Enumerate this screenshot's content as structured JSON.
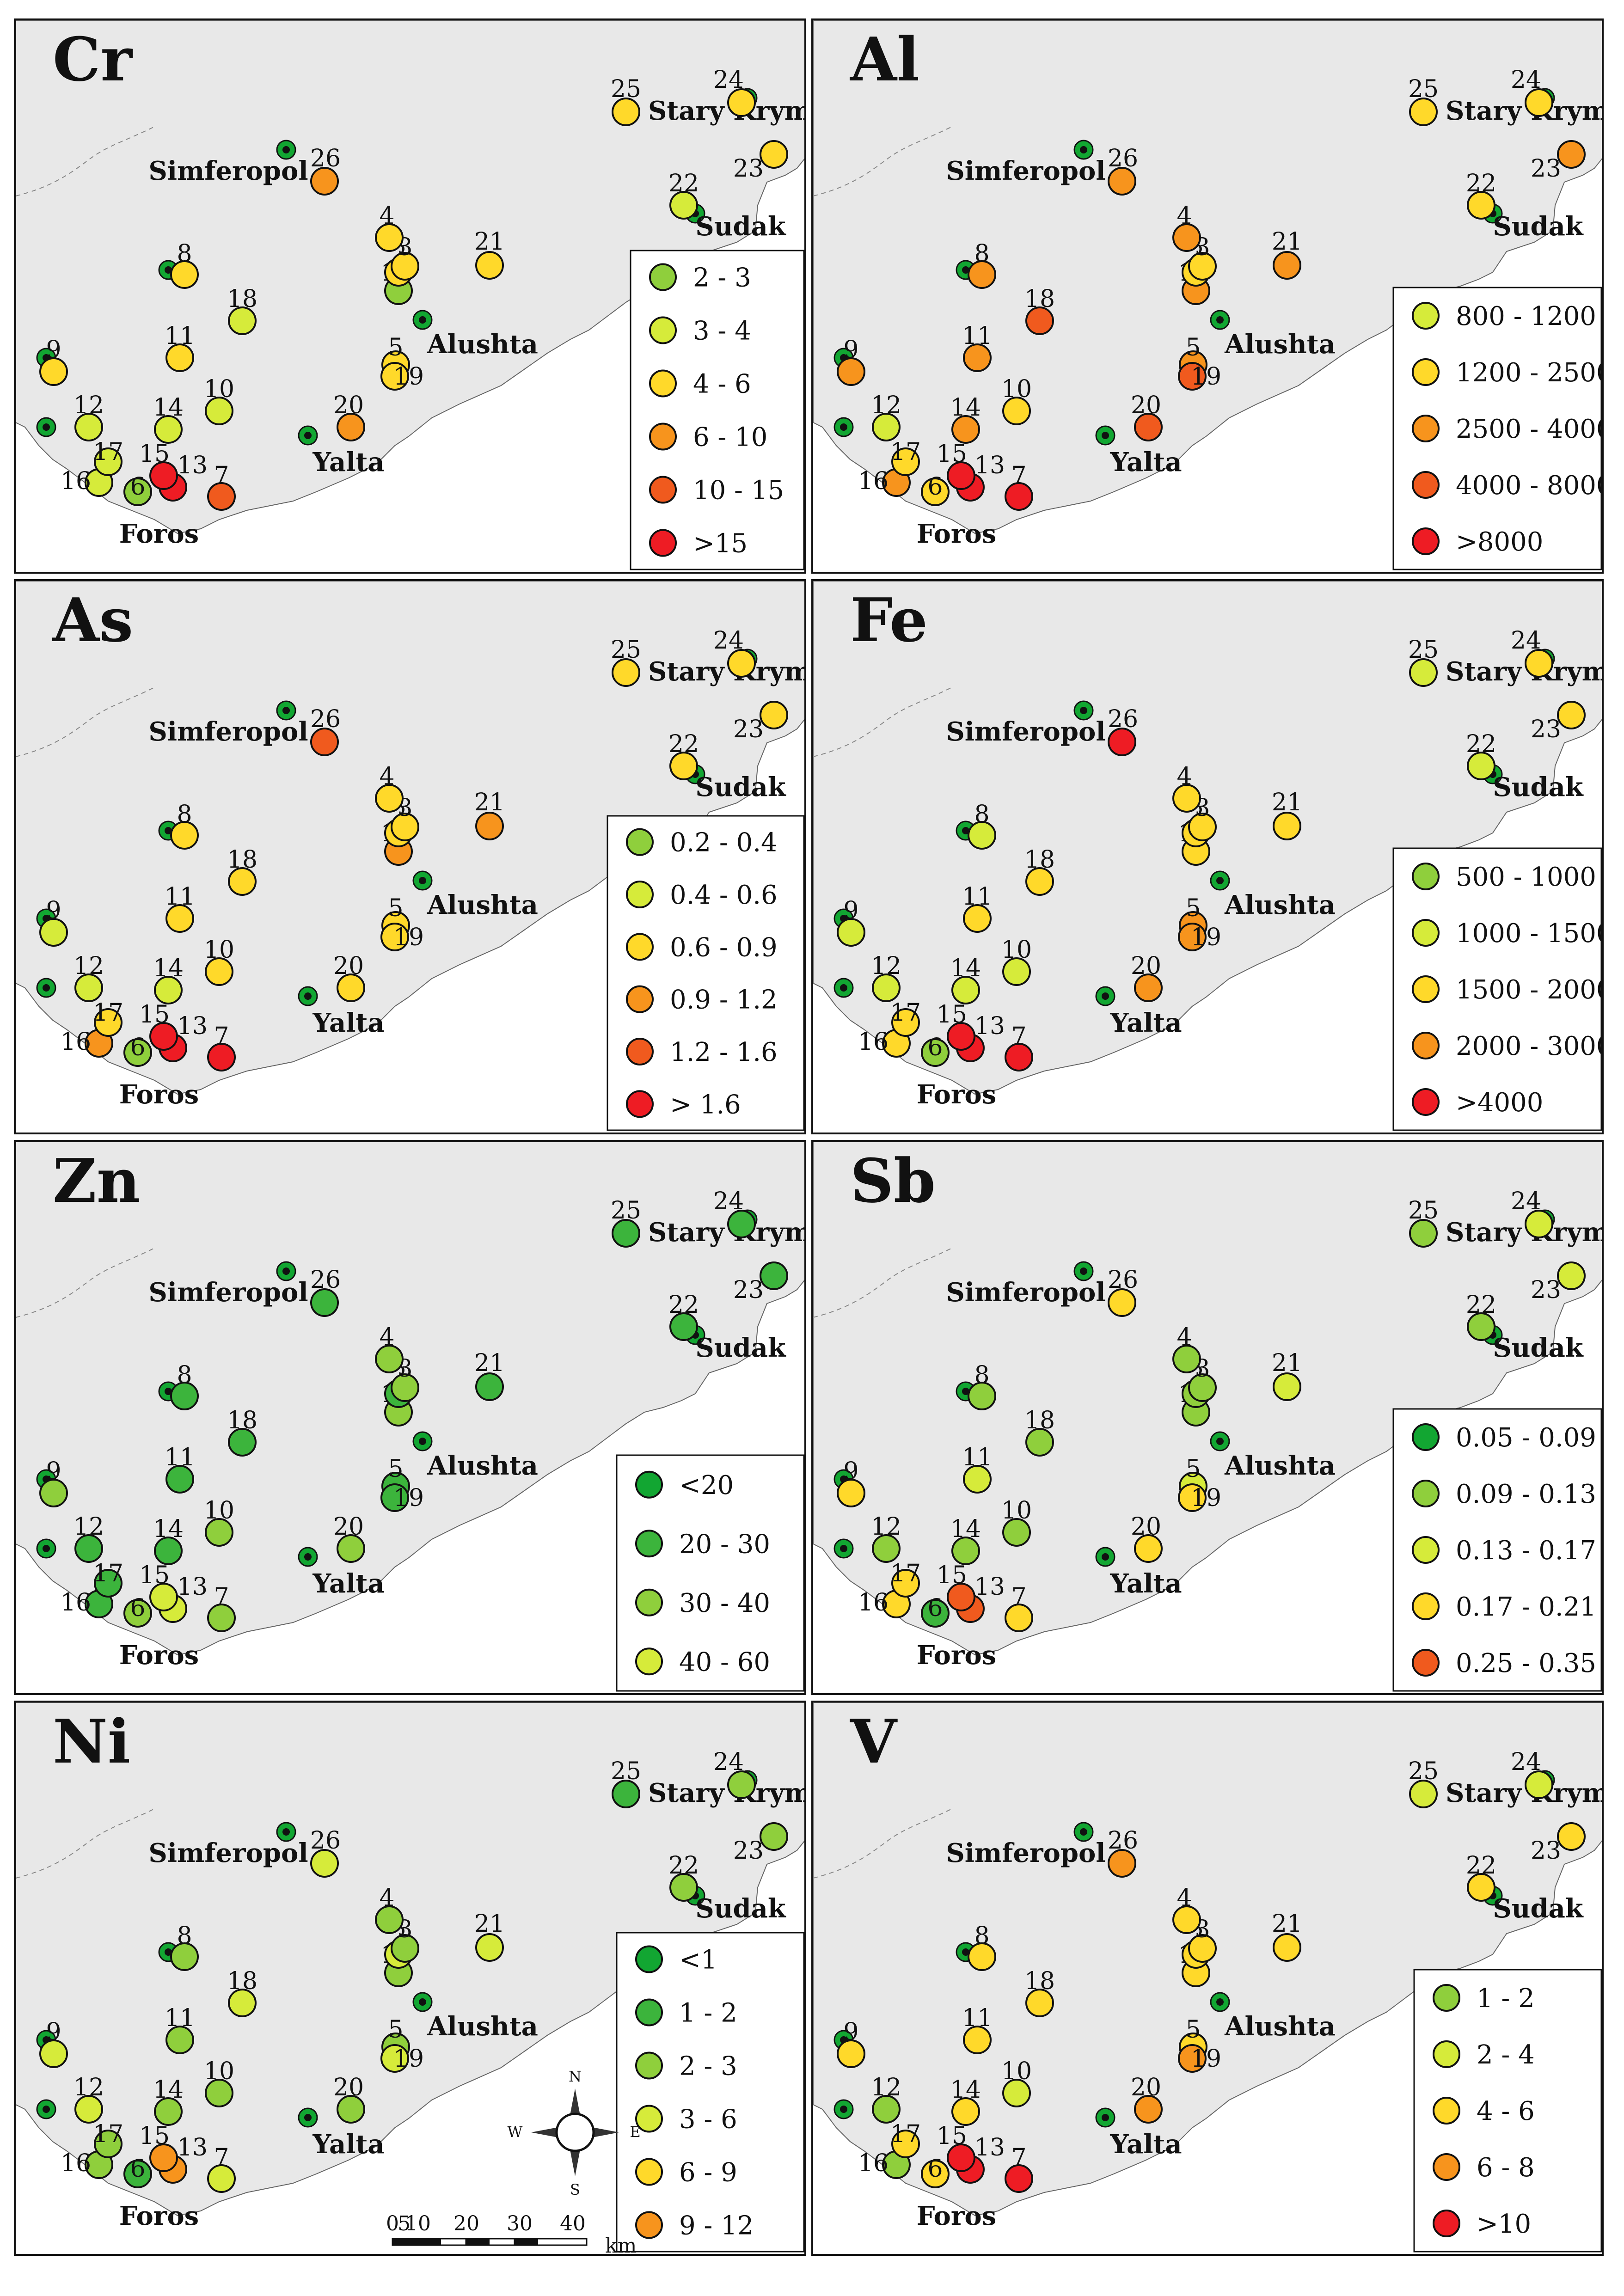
{
  "labels": {
    "foros": "Foros",
    "yalta": "Yalta",
    "alushta": "Alushta",
    "simferopol": "Simferopol",
    "sudak": "Sudak",
    "stary_krym": "Stary Krym"
  },
  "scale_bar": {
    "ticks": [
      "0",
      "5",
      "10",
      "20",
      "30",
      "40"
    ],
    "unit": "km"
  },
  "compass": {
    "n": "N",
    "s": "S",
    "e": "E",
    "w": "W"
  },
  "colors": {
    "sea": "#ffffff",
    "land": "#e8e8e8",
    "border": "#111111",
    "dark_green": "#12a632",
    "green": "#3cb43c",
    "light_green": "#8fcf3c",
    "yellow_green": "#d6eb3a",
    "yellow": "#ffd92a",
    "orange": "#f7941d",
    "red_orange": "#f05a1e",
    "red": "#ee1c24"
  },
  "panels": [
    {
      "element": "Cr",
      "site_colors": {
        "1": "light_green",
        "2": "yellow",
        "3": "yellow",
        "4": "yellow",
        "5": "yellow",
        "6": "light_green",
        "7": "red_orange",
        "8": "yellow",
        "9": "yellow",
        "10": "yellow_green",
        "11": "yellow",
        "12": "yellow_green",
        "13": "red",
        "14": "yellow_green",
        "15": "red",
        "16": "yellow_green",
        "17": "yellow_green",
        "18": "yellow_green",
        "19": "yellow",
        "20": "orange",
        "21": "yellow",
        "22": "yellow_green",
        "23": "yellow",
        "24": "yellow",
        "25": "yellow",
        "26": "orange"
      },
      "legend": [
        {
          "range": "2 - 3",
          "color": "light_green"
        },
        {
          "range": "3 - 4",
          "color": "yellow_green"
        },
        {
          "range": "4 - 6",
          "color": "yellow"
        },
        {
          "range": "6 - 10",
          "color": "orange"
        },
        {
          "range": "10 - 15",
          "color": "red_orange"
        },
        {
          "range": ">15",
          "color": "red"
        }
      ]
    },
    {
      "element": "Al",
      "site_colors": {
        "1": "orange",
        "2": "yellow",
        "3": "yellow",
        "4": "orange",
        "5": "orange",
        "6": "yellow",
        "7": "red",
        "8": "orange",
        "9": "orange",
        "10": "yellow",
        "11": "orange",
        "12": "yellow_green",
        "13": "red",
        "14": "orange",
        "15": "red",
        "16": "orange",
        "17": "yellow",
        "18": "red_orange",
        "19": "red_orange",
        "20": "red_orange",
        "21": "orange",
        "22": "yellow",
        "23": "orange",
        "24": "yellow",
        "25": "yellow",
        "26": "orange"
      },
      "legend": [
        {
          "range": "800 - 1200",
          "color": "yellow_green"
        },
        {
          "range": "1200 - 2500",
          "color": "yellow"
        },
        {
          "range": "2500 - 4000",
          "color": "orange"
        },
        {
          "range": "4000 - 8000",
          "color": "red_orange"
        },
        {
          "range": ">8000",
          "color": "red"
        }
      ]
    },
    {
      "element": "As",
      "site_colors": {
        "1": "orange",
        "2": "yellow",
        "3": "yellow",
        "4": "yellow",
        "5": "yellow",
        "6": "light_green",
        "7": "red",
        "8": "yellow",
        "9": "yellow_green",
        "10": "yellow",
        "11": "yellow",
        "12": "yellow_green",
        "13": "red",
        "14": "yellow_green",
        "15": "red",
        "16": "orange",
        "17": "yellow",
        "18": "yellow",
        "19": "yellow",
        "20": "yellow",
        "21": "orange",
        "22": "yellow",
        "23": "yellow",
        "24": "yellow",
        "25": "yellow",
        "26": "red_orange"
      },
      "legend": [
        {
          "range": "0.2 - 0.4",
          "color": "light_green"
        },
        {
          "range": "0.4 - 0.6",
          "color": "yellow_green"
        },
        {
          "range": "0.6 - 0.9",
          "color": "yellow"
        },
        {
          "range": "0.9 - 1.2",
          "color": "orange"
        },
        {
          "range": "1.2 - 1.6",
          "color": "red_orange"
        },
        {
          "range": "> 1.6",
          "color": "red"
        }
      ]
    },
    {
      "element": "Fe",
      "site_colors": {
        "1": "yellow",
        "2": "yellow",
        "3": "yellow",
        "4": "yellow",
        "5": "orange",
        "6": "light_green",
        "7": "red",
        "8": "yellow_green",
        "9": "yellow_green",
        "10": "yellow_green",
        "11": "yellow",
        "12": "yellow_green",
        "13": "red",
        "14": "yellow_green",
        "15": "red",
        "16": "yellow",
        "17": "yellow",
        "18": "yellow",
        "19": "orange",
        "20": "orange",
        "21": "yellow",
        "22": "yellow_green",
        "23": "yellow",
        "24": "yellow",
        "25": "yellow_green",
        "26": "red"
      },
      "legend": [
        {
          "range": "500 - 1000",
          "color": "light_green"
        },
        {
          "range": "1000 - 1500",
          "color": "yellow_green"
        },
        {
          "range": "1500 - 2000",
          "color": "yellow"
        },
        {
          "range": "2000 - 3000",
          "color": "orange"
        },
        {
          "range": ">4000",
          "color": "red"
        }
      ]
    },
    {
      "element": "Zn",
      "site_colors": {
        "1": "light_green",
        "2": "green",
        "3": "light_green",
        "4": "light_green",
        "5": "green",
        "6": "light_green",
        "7": "light_green",
        "8": "green",
        "9": "light_green",
        "10": "light_green",
        "11": "green",
        "12": "green",
        "13": "yellow_green",
        "14": "green",
        "15": "yellow_green",
        "16": "green",
        "17": "green",
        "18": "green",
        "19": "green",
        "20": "light_green",
        "21": "green",
        "22": "green",
        "23": "green",
        "24": "green",
        "25": "green",
        "26": "green"
      },
      "legend": [
        {
          "range": "<20",
          "color": "dark_green"
        },
        {
          "range": "20 - 30",
          "color": "green"
        },
        {
          "range": "30 - 40",
          "color": "light_green"
        },
        {
          "range": "40 - 60",
          "color": "yellow_green"
        }
      ]
    },
    {
      "element": "Sb",
      "site_colors": {
        "1": "light_green",
        "2": "light_green",
        "3": "light_green",
        "4": "light_green",
        "5": "yellow_green",
        "6": "green",
        "7": "yellow",
        "8": "light_green",
        "9": "yellow",
        "10": "light_green",
        "11": "yellow_green",
        "12": "light_green",
        "13": "red_orange",
        "14": "light_green",
        "15": "red_orange",
        "16": "yellow",
        "17": "yellow",
        "18": "light_green",
        "19": "yellow",
        "20": "yellow",
        "21": "yellow_green",
        "22": "light_green",
        "23": "yellow_green",
        "24": "yellow_green",
        "25": "light_green",
        "26": "yellow"
      },
      "legend": [
        {
          "range": "0.05 - 0.09",
          "color": "dark_green"
        },
        {
          "range": "0.09 - 0.13",
          "color": "light_green"
        },
        {
          "range": "0.13 - 0.17",
          "color": "yellow_green"
        },
        {
          "range": "0.17 - 0.21",
          "color": "yellow"
        },
        {
          "range": "0.25 - 0.35",
          "color": "red_orange"
        }
      ]
    },
    {
      "element": "Ni",
      "site_colors": {
        "1": "light_green",
        "2": "yellow_green",
        "3": "light_green",
        "4": "light_green",
        "5": "light_green",
        "6": "green",
        "7": "yellow_green",
        "8": "light_green",
        "9": "yellow_green",
        "10": "light_green",
        "11": "light_green",
        "12": "yellow_green",
        "13": "orange",
        "14": "light_green",
        "15": "orange",
        "16": "light_green",
        "17": "light_green",
        "18": "yellow_green",
        "19": "yellow_green",
        "20": "light_green",
        "21": "yellow_green",
        "22": "light_green",
        "23": "light_green",
        "24": "light_green",
        "25": "green",
        "26": "yellow_green"
      },
      "legend": [
        {
          "range": "<1",
          "color": "dark_green"
        },
        {
          "range": "1 - 2",
          "color": "green"
        },
        {
          "range": "2 - 3",
          "color": "light_green"
        },
        {
          "range": "3 - 6",
          "color": "yellow_green"
        },
        {
          "range": "6 - 9",
          "color": "yellow"
        },
        {
          "range": "9 - 12",
          "color": "orange"
        }
      ]
    },
    {
      "element": "V",
      "site_colors": {
        "1": "yellow",
        "2": "yellow",
        "3": "yellow",
        "4": "yellow",
        "5": "yellow",
        "6": "yellow",
        "7": "red",
        "8": "yellow",
        "9": "yellow",
        "10": "yellow_green",
        "11": "yellow",
        "12": "light_green",
        "13": "red",
        "14": "yellow",
        "15": "red",
        "16": "light_green",
        "17": "yellow",
        "18": "yellow",
        "19": "orange",
        "20": "orange",
        "21": "yellow",
        "22": "yellow",
        "23": "yellow",
        "24": "yellow_green",
        "25": "yellow_green",
        "26": "orange"
      },
      "legend": [
        {
          "range": "1 - 2",
          "color": "light_green"
        },
        {
          "range": "2 - 4",
          "color": "yellow_green"
        },
        {
          "range": "4 - 6",
          "color": "yellow"
        },
        {
          "range": "6 - 8",
          "color": "orange"
        },
        {
          "range": ">10",
          "color": "red"
        }
      ]
    }
  ]
}
